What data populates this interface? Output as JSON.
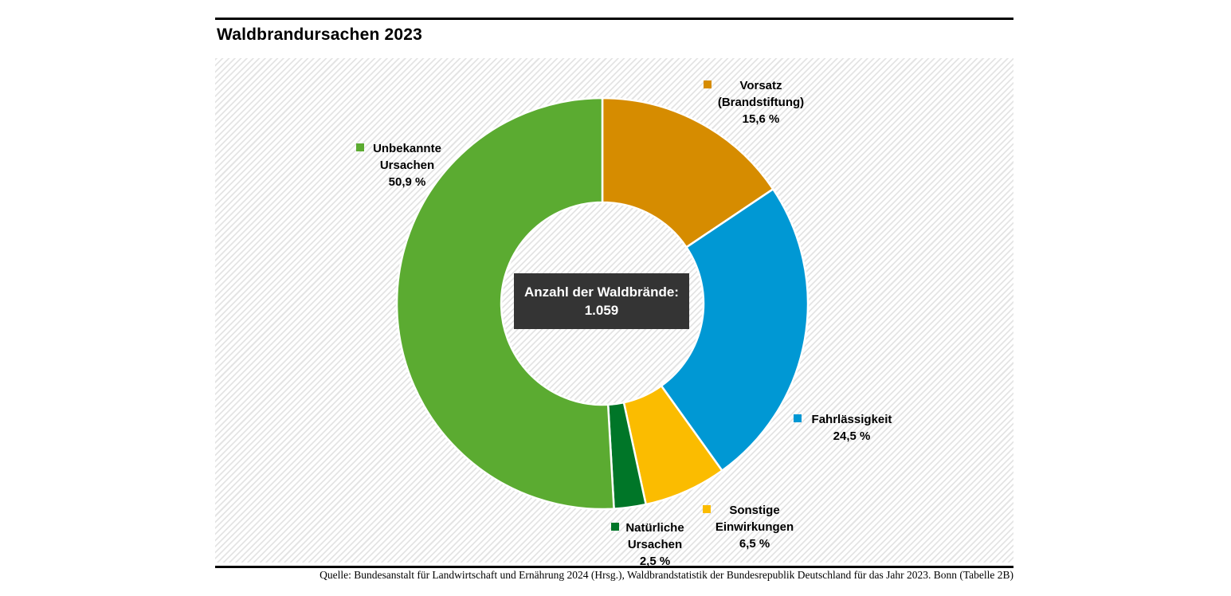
{
  "header": {
    "title": "Waldbrandursachen 2023"
  },
  "center_box": {
    "line1": "Anzahl der Waldbrände:",
    "line2": "1.059"
  },
  "callouts": {
    "vorsatz": {
      "lines": [
        "Vorsatz",
        "(Brandstiftung)",
        "15,6 %"
      ]
    },
    "fahrlaessigkeit": {
      "lines": [
        "Fahrlässigkeit",
        "24,5 %"
      ]
    },
    "sonstige": {
      "lines": [
        "Sonstige",
        "Einwirkungen",
        "6,5 %"
      ]
    },
    "natuerliche": {
      "lines": [
        "Natürliche",
        "Ursachen",
        "2,5 %"
      ]
    },
    "unbekannte": {
      "lines": [
        "Unbekannte",
        "Ursachen",
        "50,9 %"
      ]
    }
  },
  "source": "Quelle: Bundesanstalt für Landwirtschaft und Ernährung 2024 (Hrsg.), Waldbrandstatistik der Bundesrepublik Deutschland für das Jahr 2023. Bonn (Tabelle 2B)",
  "colors": {
    "vorsatz_orange": "#D68C00",
    "fahrlaessigkeit_blue": "#0098D4",
    "sonstige_yellow": "#FBBC00",
    "natuerliche_darkgreen": "#007628",
    "unbekannte_green": "#5BAB31",
    "center_box_bg": "#343434",
    "hatch_line": "#e4e4e4"
  },
  "chart_data": {
    "type": "pie",
    "subtype": "donut",
    "title": "Waldbrandursachen 2023",
    "center_label": "Anzahl der Waldbrände:",
    "center_value": "1.059",
    "total_fires": 1059,
    "unit": "%",
    "start_angle_deg": 0,
    "direction": "clockwise",
    "legend_position": "callouts-around-donut",
    "segments": [
      {
        "slug": "vorsatz-brandstiftung",
        "label": "Vorsatz (Brandstiftung)",
        "value": 15.6,
        "display": "15,6 %",
        "color": "#D68C00"
      },
      {
        "slug": "fahrlaessigkeit",
        "label": "Fahrlässigkeit",
        "value": 24.5,
        "display": "24,5 %",
        "color": "#0098D4"
      },
      {
        "slug": "sonstige-einwirkungen",
        "label": "Sonstige Einwirkungen",
        "value": 6.5,
        "display": "6,5 %",
        "color": "#FBBC00"
      },
      {
        "slug": "natuerliche-ursachen",
        "label": "Natürliche Ursachen",
        "value": 2.5,
        "display": "2,5 %",
        "color": "#007628"
      },
      {
        "slug": "unbekannte-ursachen",
        "label": "Unbekannte Ursachen",
        "value": 50.9,
        "display": "50,9 %",
        "color": "#5BAB31"
      }
    ]
  }
}
